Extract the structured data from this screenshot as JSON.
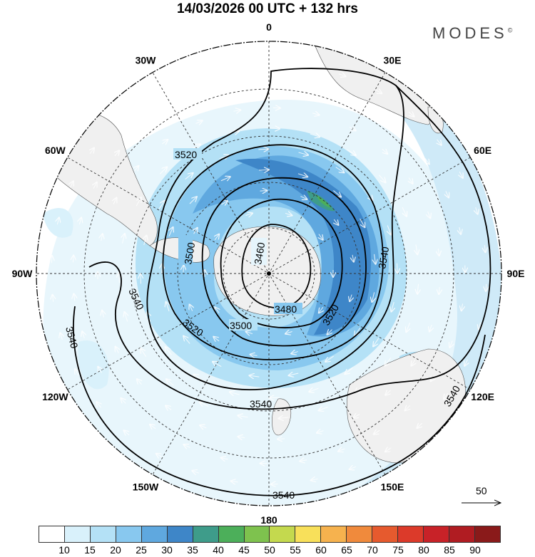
{
  "title": "14/03/2026  00 UTC  + 132 hrs",
  "brand": "MODES",
  "brand_mark": "©",
  "longitude_labels": [
    {
      "lon": 0,
      "text": "0"
    },
    {
      "lon": 30,
      "text": "30E"
    },
    {
      "lon": 60,
      "text": "60E"
    },
    {
      "lon": 90,
      "text": "90E"
    },
    {
      "lon": 120,
      "text": "120E"
    },
    {
      "lon": 150,
      "text": "150E"
    },
    {
      "lon": 180,
      "text": "180"
    },
    {
      "lon": -150,
      "text": "150W"
    },
    {
      "lon": -120,
      "text": "120W"
    },
    {
      "lon": -90,
      "text": "90W"
    },
    {
      "lon": -60,
      "text": "60W"
    },
    {
      "lon": -30,
      "text": "30W"
    }
  ],
  "contour_labels": [
    "3460",
    "3480",
    "3500",
    "3520",
    "3540"
  ],
  "vector_reference": {
    "value": "50"
  },
  "colorbar": {
    "colors": [
      "#ffffff",
      "#d9f1fb",
      "#b4e1f6",
      "#88c8ef",
      "#5fa8df",
      "#3e86c8",
      "#3e9c8a",
      "#4caf5a",
      "#7ec24e",
      "#c4d94e",
      "#f8e05a",
      "#f6b24e",
      "#f08a3c",
      "#e65a2e",
      "#dc3a2a",
      "#c82228",
      "#b01c22",
      "#8a1a1a"
    ],
    "ticks": [
      "10",
      "15",
      "20",
      "25",
      "30",
      "35",
      "40",
      "45",
      "50",
      "55",
      "60",
      "65",
      "70",
      "75",
      "80",
      "85",
      "90"
    ]
  },
  "land_color": "#f0f0f0",
  "contour_color": "#000000",
  "graticule_color": "#333333"
}
